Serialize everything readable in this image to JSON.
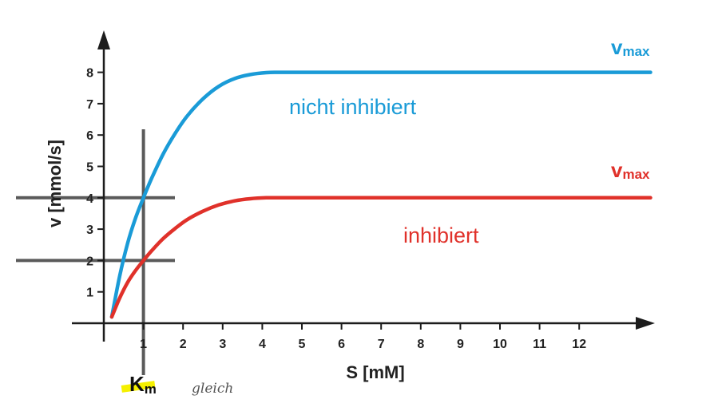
{
  "chart_data": {
    "type": "line",
    "title": "",
    "xlabel": "S [mM]",
    "ylabel": "v [mmol/s]",
    "x_ticks": [
      1,
      2,
      3,
      4,
      5,
      6,
      7,
      8,
      9,
      10,
      11,
      12
    ],
    "y_ticks": [
      1,
      2,
      3,
      4,
      5,
      6,
      7,
      8
    ],
    "xlim": [
      -1,
      13.8
    ],
    "ylim": [
      -0.2,
      10.5
    ],
    "series": [
      {
        "name": "nicht inhibiert",
        "color": "#1a9bd7",
        "vmax": 8,
        "x": [
          0.2,
          0.4,
          0.6,
          0.8,
          1.0,
          1.2,
          1.5,
          1.8,
          2.1,
          2.5,
          2.9,
          3.3,
          3.7,
          4.1,
          4.5,
          6,
          8,
          10,
          12,
          13.8
        ],
        "values": [
          0.2,
          1.5,
          2.55,
          3.35,
          4.0,
          4.6,
          5.4,
          6.05,
          6.6,
          7.15,
          7.55,
          7.8,
          7.93,
          7.99,
          8.0,
          8.0,
          8.0,
          8.0,
          8.0,
          8.0
        ]
      },
      {
        "name": "inhibiert",
        "color": "#e0312a",
        "vmax": 4,
        "x": [
          0.2,
          0.4,
          0.6,
          0.8,
          1.0,
          1.2,
          1.5,
          1.8,
          2.1,
          2.5,
          2.9,
          3.3,
          3.7,
          4.1,
          4.5,
          6,
          8,
          10,
          12,
          13.8
        ],
        "values": [
          0.2,
          0.8,
          1.3,
          1.68,
          2.0,
          2.3,
          2.7,
          3.02,
          3.3,
          3.57,
          3.77,
          3.9,
          3.97,
          4.0,
          4.0,
          4.0,
          4.0,
          4.0,
          4.0,
          4.0
        ]
      }
    ],
    "guide_lines": {
      "color": "#5a5a5a",
      "vertical_x": 1,
      "horizontal_y": [
        4,
        2
      ]
    },
    "series_labels": [
      "nicht inhibiert",
      "inhibiert"
    ],
    "vmax_label": {
      "main": "v",
      "sub": "max"
    },
    "km_label": {
      "main": "K",
      "sub": "m",
      "highlight_color": "#f5f000"
    },
    "handwritten_note": "gleich"
  }
}
